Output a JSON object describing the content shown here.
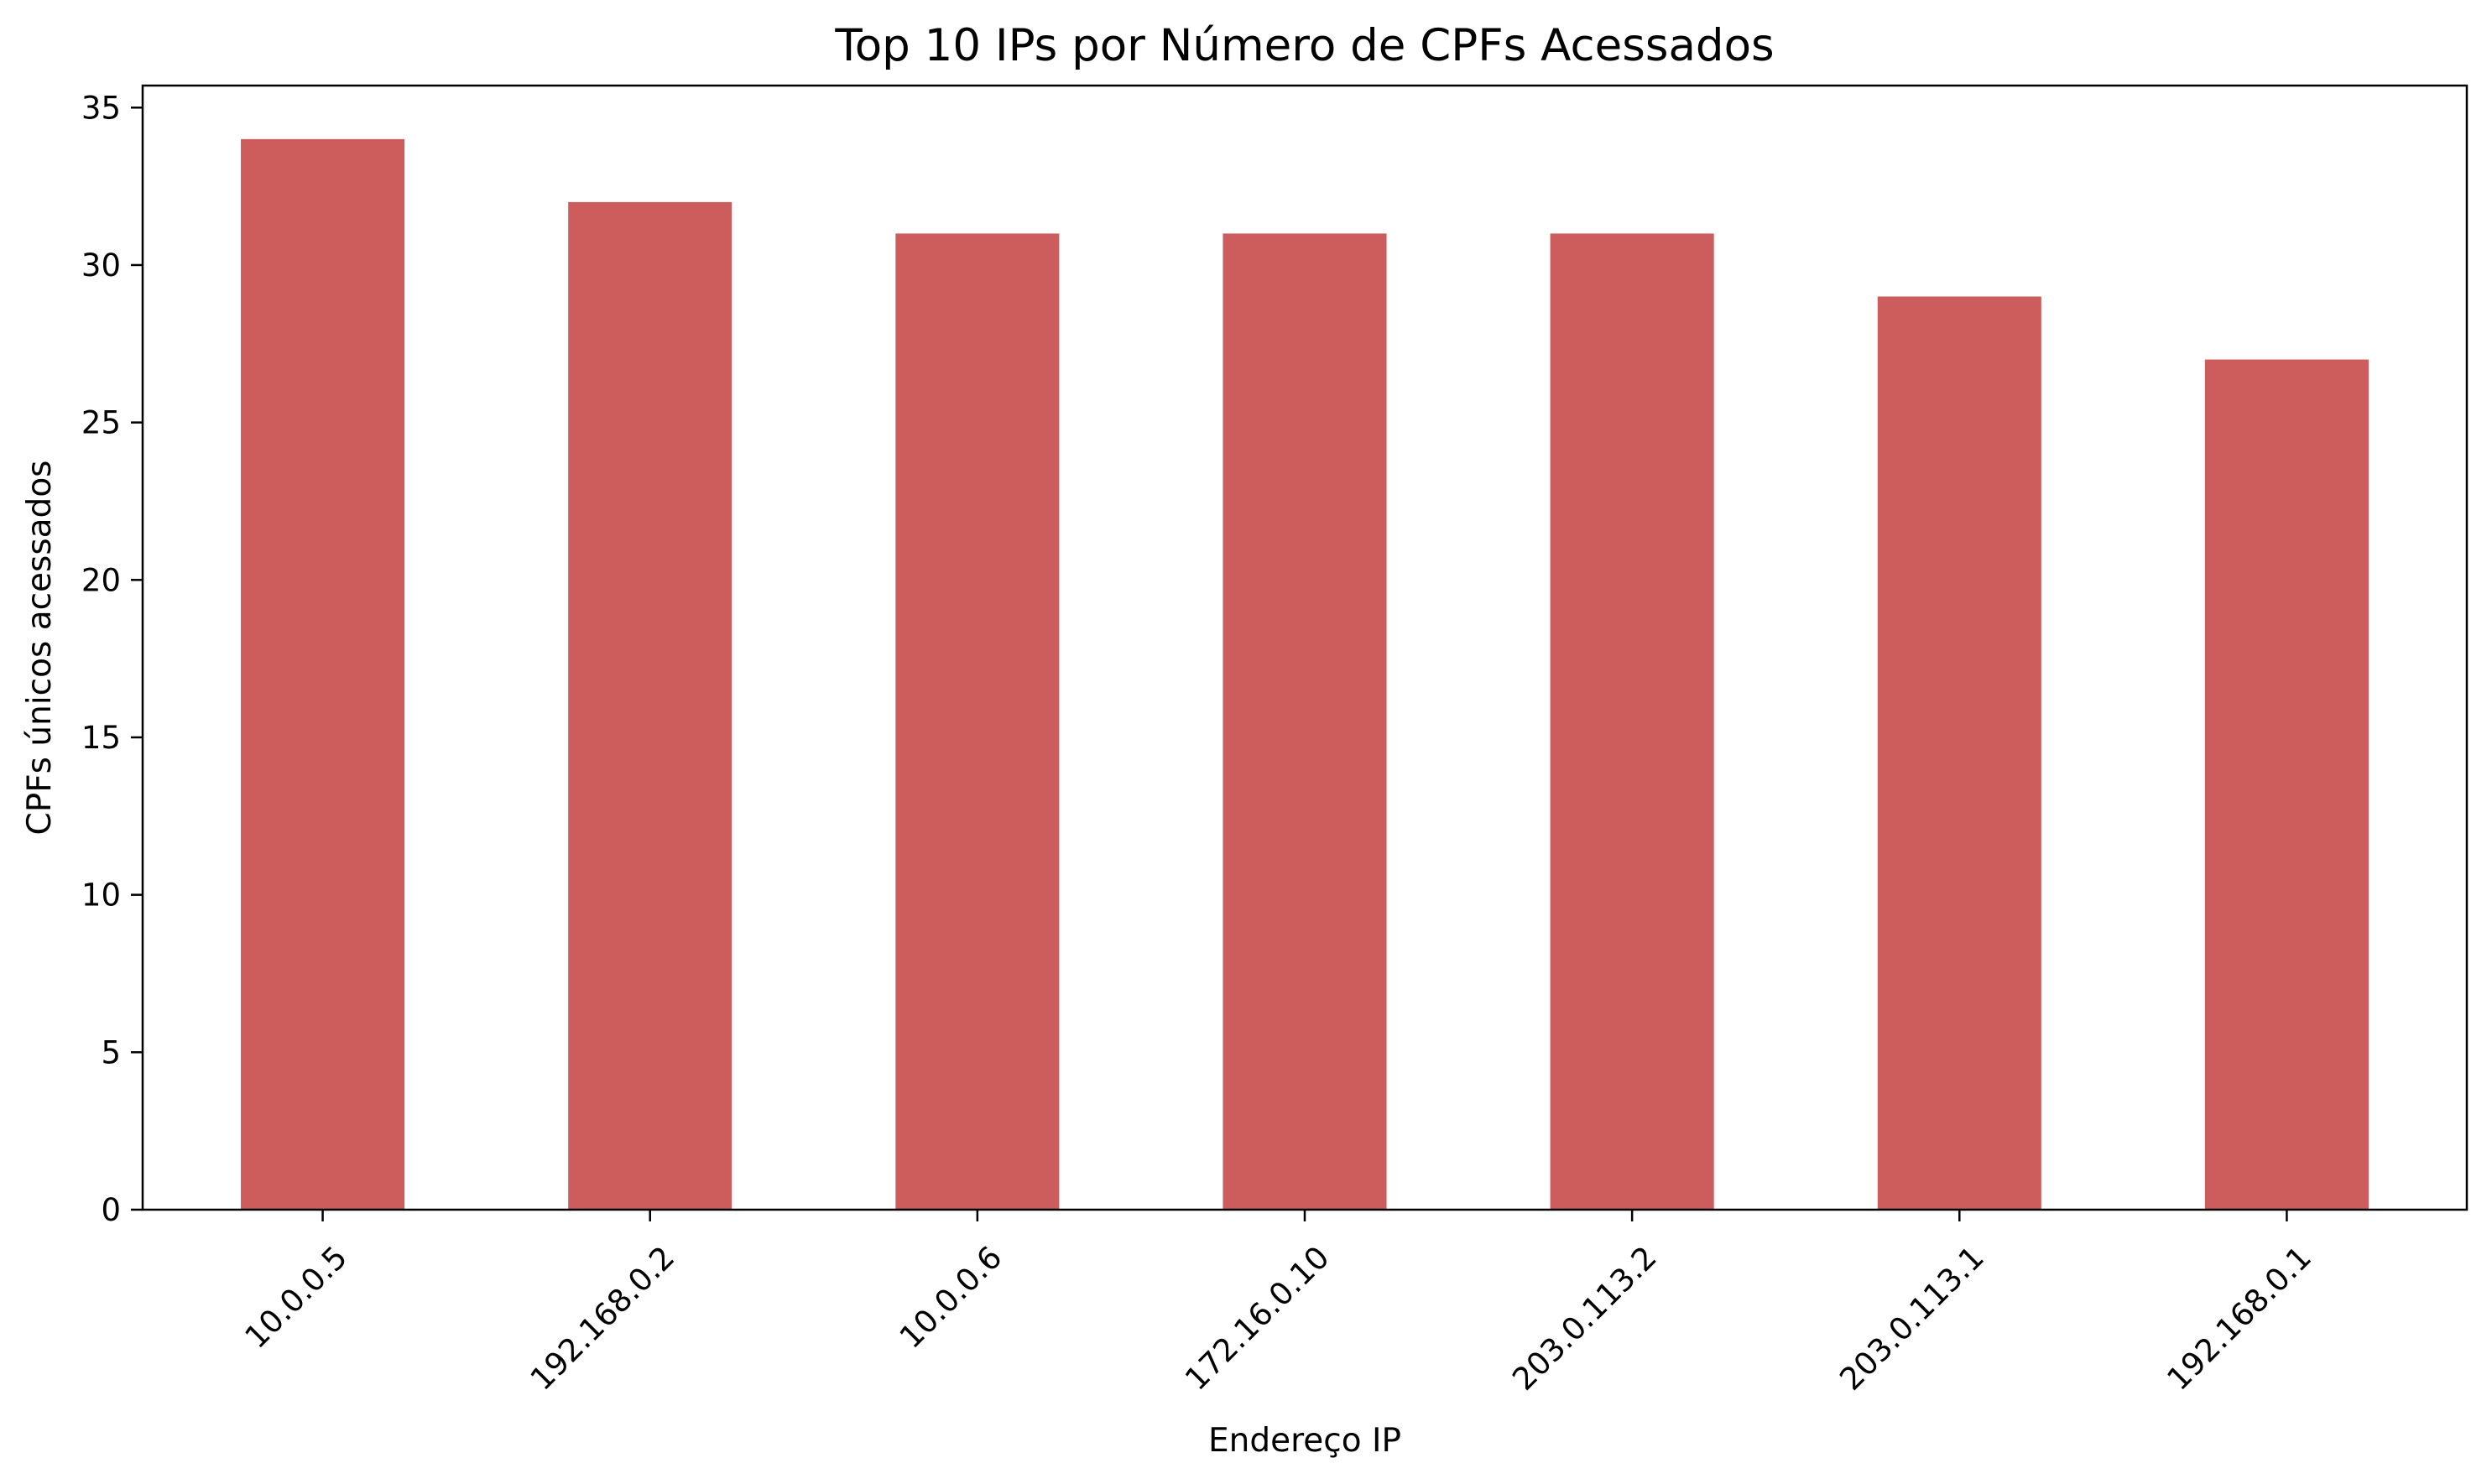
{
  "chart_data": {
    "type": "bar",
    "title": "Top 10 IPs por Número de CPFs Acessados",
    "xlabel": "Endereço IP",
    "ylabel": "CPFs únicos acessados",
    "categories": [
      "10.0.0.5",
      "192.168.0.2",
      "10.0.0.6",
      "172.16.0.10",
      "203.0.113.2",
      "203.0.113.1",
      "192.168.0.1"
    ],
    "values": [
      34,
      32,
      31,
      31,
      31,
      29,
      27
    ],
    "ylim": [
      0,
      35.7
    ],
    "yticks": [
      0,
      5,
      10,
      15,
      20,
      25,
      30,
      35
    ],
    "grid": false,
    "legend": false,
    "bar_color": "#cd5c5c"
  }
}
